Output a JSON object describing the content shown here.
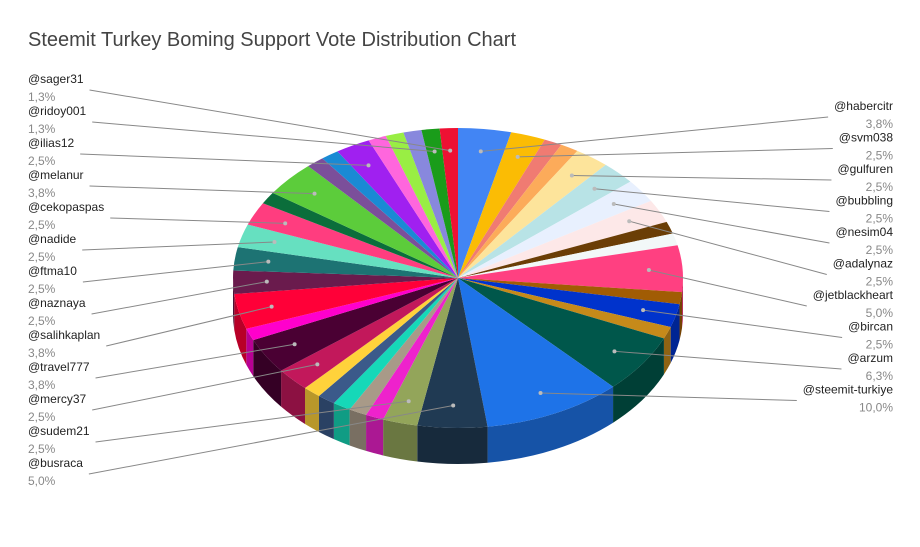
{
  "chart_data": {
    "type": "pie",
    "title": "Steemit Turkey Boming Support Vote Distribution Chart",
    "categories": [
      "@habercitr",
      "@svm038",
      null,
      null,
      "@gulfuren",
      "@bubbling",
      "@nesim04",
      "@adalynaz",
      null,
      null,
      "@jetblackheart",
      null,
      "@bircan",
      null,
      "@arzum",
      "@steemit-turkiye",
      "@busraca",
      "@sudem21",
      null,
      null,
      null,
      null,
      null,
      "@mercy37",
      "@travel777",
      null,
      "@salihkaplan",
      "@naznaya",
      "@ftma10",
      "@nadide",
      "@cekopaspas",
      null,
      "@melanur",
      null,
      null,
      "@ilias12",
      null,
      null,
      null,
      "@ridoy001",
      "@sager31"
    ],
    "values": [
      3.8,
      2.5,
      1.3,
      1.3,
      2.5,
      2.5,
      2.5,
      2.5,
      1.3,
      1.3,
      5.0,
      1.3,
      2.5,
      1.3,
      6.3,
      10.0,
      5.0,
      2.5,
      1.3,
      1.3,
      1.3,
      1.3,
      1.3,
      2.5,
      3.8,
      1.3,
      3.8,
      2.5,
      2.5,
      2.5,
      2.5,
      1.3,
      3.8,
      1.3,
      1.3,
      2.5,
      1.3,
      1.3,
      1.3,
      1.3,
      1.3
    ],
    "value_labels": [
      "3,8%",
      "2,5%",
      null,
      null,
      "2,5%",
      "2,5%",
      "2,5%",
      "2,5%",
      null,
      null,
      "5,0%",
      null,
      "2,5%",
      null,
      "6,3%",
      "10,0%",
      "5,0%",
      "2,5%",
      null,
      null,
      null,
      null,
      null,
      "2,5%",
      "3,8%",
      null,
      "3,8%",
      "2,5%",
      "2,5%",
      "2,5%",
      "2,5%",
      null,
      "3,8%",
      null,
      null,
      "2,5%",
      null,
      null,
      null,
      "1,3%",
      "1,3%"
    ],
    "colors": [
      "#4285f4",
      "#fbbc04",
      "#f07b72",
      "#fcab5a",
      "#fde49b",
      "#b8e3e6",
      "#e8f0fe",
      "#fde8e8",
      "#6b3e06",
      "#f2f8f8",
      "#ff4081",
      "#a15c04",
      "#0033cc",
      "#c68a1a",
      "#00574b",
      "#1e73e8",
      "#203a53",
      "#93a55a",
      "#ee22cc",
      "#a89a88",
      "#16d8b8",
      "#3b5a8a",
      "#ffd23b",
      "#c2185b",
      "#4a0033",
      "#ff00cc",
      "#ff0038",
      "#6a1b4d",
      "#1d7373",
      "#66e0c0",
      "#ff3d7f",
      "#0b6e3b",
      "#5ccc3b",
      "#7b4f9a",
      "#1a8ad4",
      "#a020f0",
      "#ff66dd",
      "#99ee44",
      "#8888dd",
      "#1a9c1a",
      "#ee1133"
    ]
  }
}
